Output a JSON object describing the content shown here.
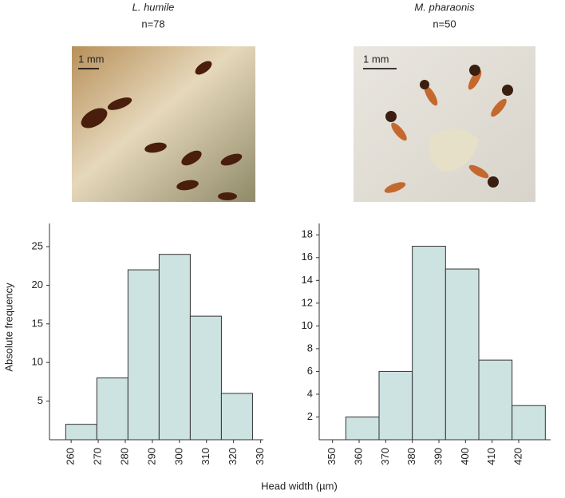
{
  "chart_data": [
    {
      "type": "histogram",
      "title": "L. humile",
      "subtitle": "n=78",
      "photo": {
        "scale_label": "1 mm"
      },
      "ylabel": "Absolute frequency",
      "bins": [
        258,
        269.5,
        281,
        292.5,
        304,
        315.5,
        327
      ],
      "values": [
        2,
        8,
        22,
        24,
        16,
        6
      ],
      "color": "#cde3e1",
      "xlim": [
        252,
        331
      ],
      "xticks": [
        260,
        270,
        280,
        290,
        300,
        310,
        320,
        330
      ],
      "ylim": [
        0,
        28
      ],
      "yticks": [
        5,
        10,
        15,
        20,
        25
      ]
    },
    {
      "type": "histogram",
      "title": "M. pharaonis",
      "subtitle": "n=50",
      "photo": {
        "scale_label": "1 mm"
      },
      "bins": [
        355,
        367.5,
        380,
        392.5,
        405,
        417.5,
        430
      ],
      "values": [
        2,
        6,
        17,
        15,
        7,
        3
      ],
      "color": "#cde3e1",
      "xlim": [
        345,
        432
      ],
      "xticks": [
        350,
        360,
        370,
        380,
        390,
        400,
        410,
        420
      ],
      "ylim": [
        0,
        19
      ],
      "yticks": [
        2,
        4,
        6,
        8,
        10,
        12,
        14,
        16,
        18
      ]
    }
  ],
  "xlabel": "Head width (µm)"
}
